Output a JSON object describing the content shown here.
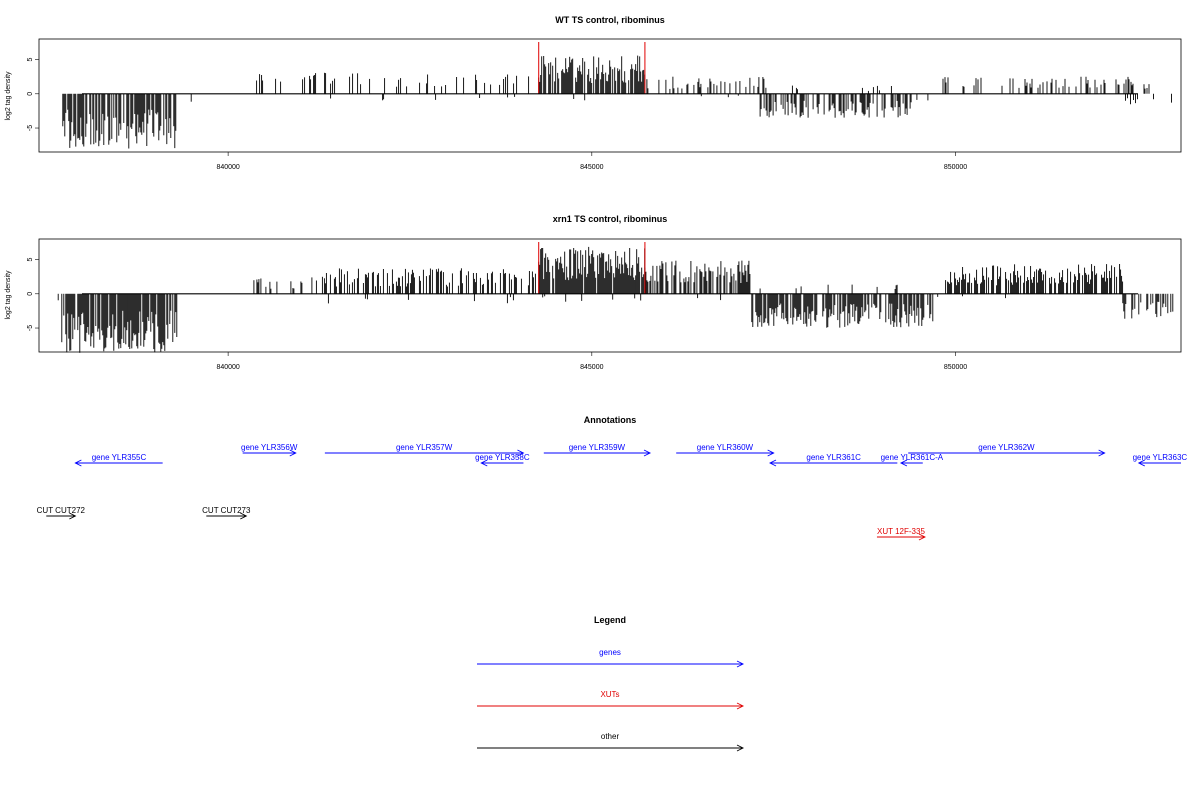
{
  "chart_data": [
    {
      "type": "bar",
      "title": "WT TS control, ribominus",
      "ylabel": "log2 tag density",
      "xlabel": "",
      "xlim": [
        837400,
        853100
      ],
      "ylim": [
        -8.5,
        8
      ],
      "yticks": [
        -5,
        0,
        5
      ],
      "xticks": [
        840000,
        845000,
        850000
      ],
      "highlight_x": [
        844270,
        845730
      ],
      "highlight_color": "#e00000",
      "track_color": "#000000",
      "regions": [
        {
          "start": 837650,
          "end": 837900,
          "height": 1.5,
          "density": 0.01
        },
        {
          "start": 837700,
          "end": 839300,
          "height": -6.5,
          "density": 0.7
        },
        {
          "start": 839300,
          "end": 840300,
          "height": -1.2,
          "density": 0.01
        },
        {
          "start": 840350,
          "end": 844270,
          "height": 2.5,
          "density": 0.18
        },
        {
          "start": 840900,
          "end": 844000,
          "height": -1.0,
          "density": 0.02
        },
        {
          "start": 844270,
          "end": 845730,
          "height": 4.5,
          "density": 0.75
        },
        {
          "start": 844270,
          "end": 845730,
          "height": -0.8,
          "density": 0.03
        },
        {
          "start": 845730,
          "end": 847400,
          "height": 2.0,
          "density": 0.3
        },
        {
          "start": 845900,
          "end": 847300,
          "height": -0.6,
          "density": 0.04
        },
        {
          "start": 847300,
          "end": 849400,
          "height": -2.8,
          "density": 0.5
        },
        {
          "start": 847400,
          "end": 849200,
          "height": 1.0,
          "density": 0.04
        },
        {
          "start": 849400,
          "end": 850000,
          "height": -1.0,
          "density": 0.08
        },
        {
          "start": 849800,
          "end": 852700,
          "height": 2.0,
          "density": 0.3
        },
        {
          "start": 852200,
          "end": 853000,
          "height": -1.5,
          "density": 0.12
        }
      ]
    },
    {
      "type": "bar",
      "title": "xrn1 TS control, ribominus",
      "ylabel": "log2 tag density",
      "xlabel": "",
      "xlim": [
        837400,
        853100
      ],
      "ylim": [
        -8.5,
        8
      ],
      "yticks": [
        -5,
        0,
        5
      ],
      "xticks": [
        840000,
        845000,
        850000
      ],
      "highlight_x": [
        844270,
        845730
      ],
      "highlight_color": "#e00000",
      "track_color": "#000000",
      "regions": [
        {
          "start": 837650,
          "end": 837900,
          "height": -0.8,
          "density": 0.02
        },
        {
          "start": 837700,
          "end": 839300,
          "height": -7.0,
          "density": 0.85
        },
        {
          "start": 839300,
          "end": 840300,
          "height": -1.5,
          "density": 0.01
        },
        {
          "start": 840300,
          "end": 841200,
          "height": 2.0,
          "density": 0.15
        },
        {
          "start": 841200,
          "end": 844270,
          "height": 3.0,
          "density": 0.4
        },
        {
          "start": 841200,
          "end": 844000,
          "height": -1.2,
          "density": 0.05
        },
        {
          "start": 844270,
          "end": 845730,
          "height": 5.5,
          "density": 0.95
        },
        {
          "start": 844270,
          "end": 845730,
          "height": -1.0,
          "density": 0.05
        },
        {
          "start": 845730,
          "end": 847200,
          "height": 4.0,
          "density": 0.6
        },
        {
          "start": 846000,
          "end": 847100,
          "height": -1.0,
          "density": 0.05
        },
        {
          "start": 847200,
          "end": 849700,
          "height": -4.0,
          "density": 0.75
        },
        {
          "start": 847300,
          "end": 849500,
          "height": 1.2,
          "density": 0.06
        },
        {
          "start": 849700,
          "end": 849900,
          "height": -1.0,
          "density": 0.05
        },
        {
          "start": 849850,
          "end": 852300,
          "height": 3.5,
          "density": 0.7
        },
        {
          "start": 850000,
          "end": 852200,
          "height": -0.6,
          "density": 0.03
        },
        {
          "start": 852300,
          "end": 853000,
          "height": -3.0,
          "density": 0.5
        }
      ]
    }
  ],
  "annotations": {
    "title": "Annotations",
    "genes": [
      {
        "label": "gene YLR355C",
        "start": 837900,
        "end": 839100,
        "strand": "-",
        "row": 1
      },
      {
        "label": "gene YLR356W",
        "start": 840200,
        "end": 840930,
        "strand": "+",
        "row": 0
      },
      {
        "label": "gene YLR357W",
        "start": 841330,
        "end": 844060,
        "strand": "+",
        "row": 0
      },
      {
        "label": "gene YLR358C",
        "start": 843480,
        "end": 844060,
        "strand": "-",
        "row": 1
      },
      {
        "label": "gene YLR359W",
        "start": 844340,
        "end": 845800,
        "strand": "+",
        "row": 0
      },
      {
        "label": "gene YLR360W",
        "start": 846160,
        "end": 847500,
        "strand": "+",
        "row": 0
      },
      {
        "label": "gene YLR361C",
        "start": 847450,
        "end": 849200,
        "strand": "-",
        "row": 1
      },
      {
        "label": "gene YLR361C-A",
        "start": 849250,
        "end": 849550,
        "strand": "-",
        "row": 1
      },
      {
        "label": "gene YLR362W",
        "start": 849350,
        "end": 852050,
        "strand": "+",
        "row": 0
      },
      {
        "label": "gene YLR363C",
        "start": 852520,
        "end": 853100,
        "strand": "-",
        "row": 1
      }
    ],
    "xuts": [
      {
        "label": "XUT 12F-335",
        "start": 848920,
        "end": 849580,
        "strand": "+",
        "row": 3
      }
    ],
    "other": [
      {
        "label": "CUT CUT272",
        "start": 837500,
        "end": 837900,
        "strand": "+",
        "row": 2
      },
      {
        "label": "CUT CUT273",
        "start": 839700,
        "end": 840250,
        "strand": "+",
        "row": 2
      }
    ]
  },
  "legend": {
    "title": "Legend",
    "items": [
      {
        "label": "genes",
        "color": "#0000ff"
      },
      {
        "label": "XUTs",
        "color": "#e00000"
      },
      {
        "label": "other",
        "color": "#000000"
      }
    ]
  },
  "colors": {
    "genes": "#0000ff",
    "xuts": "#e00000",
    "other": "#000000"
  }
}
